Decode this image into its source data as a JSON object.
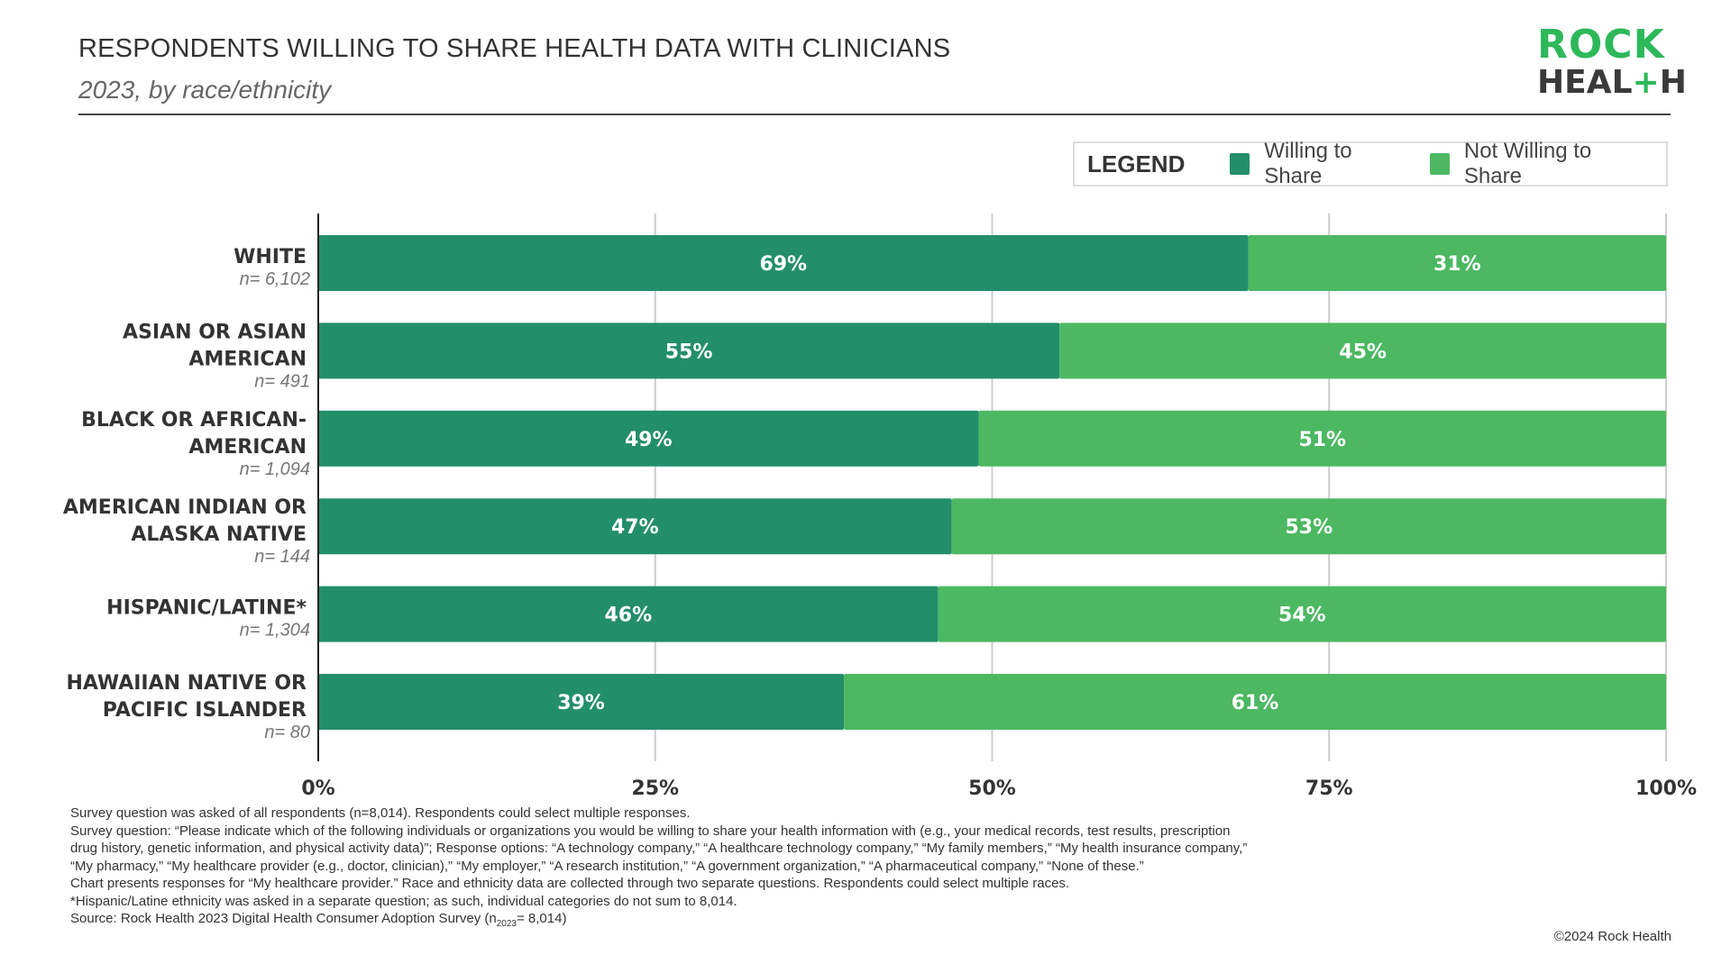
{
  "header": {
    "title": "RESPONDENTS WILLING TO SHARE HEALTH DATA WITH CLINICIANS",
    "subtitle": "2023, by race/ethnicity"
  },
  "logo": {
    "line1": "ROCK",
    "line2_a": "HEAL",
    "line2_plus": "+",
    "line2_b": "H"
  },
  "legend": {
    "title": "LEGEND",
    "items": [
      {
        "label": "Willing to Share",
        "color": "#238e6a"
      },
      {
        "label": "Not Willing to Share",
        "color": "#4cb862"
      }
    ]
  },
  "chart_data": {
    "type": "bar",
    "orientation": "horizontal",
    "stacked": true,
    "categories": [
      {
        "lines": [
          "WHITE"
        ],
        "n": "n= 6,102"
      },
      {
        "lines": [
          "ASIAN OR ASIAN",
          "AMERICAN"
        ],
        "n": "n= 491"
      },
      {
        "lines": [
          "BLACK OR AFRICAN-",
          "AMERICAN"
        ],
        "n": "n= 1,094"
      },
      {
        "lines": [
          "AMERICAN INDIAN OR",
          "ALASKA NATIVE"
        ],
        "n": "n= 144"
      },
      {
        "lines": [
          "HISPANIC/LATINE*"
        ],
        "n": "n= 1,304"
      },
      {
        "lines": [
          "HAWAIIAN NATIVE OR",
          "PACIFIC ISLANDER"
        ],
        "n": "n= 80"
      }
    ],
    "series": [
      {
        "name": "Willing to Share",
        "values": [
          69,
          55,
          49,
          47,
          46,
          39
        ],
        "color": "#238e6a"
      },
      {
        "name": "Not Willing to Share",
        "values": [
          31,
          45,
          51,
          53,
          54,
          61
        ],
        "color": "#4cb862"
      }
    ],
    "xlim": [
      0,
      100
    ],
    "xticks": [
      0,
      25,
      50,
      75,
      100
    ],
    "xtick_labels": [
      "0%",
      "25%",
      "50%",
      "75%",
      "100%"
    ],
    "grid": true,
    "legend_position": "top-right"
  },
  "notes": [
    "Survey question was asked of all respondents (n=8,014). Respondents could select multiple responses.",
    "Survey question: “Please indicate which of the following individuals or organizations you would be willing to share your health information with (e.g., your medical records, test results, prescription drug history, genetic information, and physical activity data)”; Response options: “A technology company,” “A healthcare technology company,” “My family members,” “My health insurance company,” “My pharmacy,” “My healthcare provider (e.g., doctor, clinician),” “My employer,” “A research institution,” “A government organization,” “A pharmaceutical company,” “None of these.”",
    "Chart presents responses for “My healthcare provider.” Race and ethnicity data are collected through two separate questions. Respondents could select multiple races.",
    "*Hispanic/Latine ethnicity was asked in a separate question; as such, individual categories do not sum to 8,014."
  ],
  "source": {
    "prefix": "Source: Rock Health 2023 Digital Health Consumer Adoption Survey (n",
    "subscript": "2023",
    "suffix": "= 8,014)"
  },
  "copyright": "©2024 Rock Health"
}
